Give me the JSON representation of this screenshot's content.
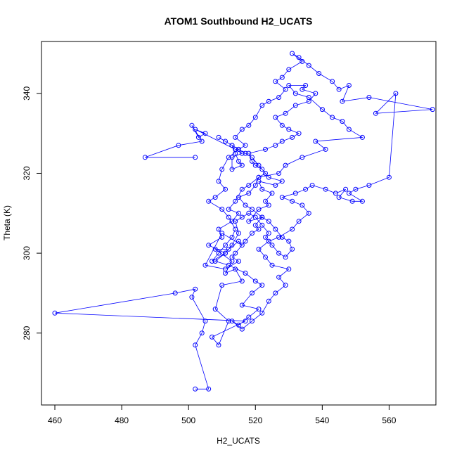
{
  "chart_data": {
    "type": "scatter",
    "title": "ATOM1 Southbound H2_UCATS",
    "xlabel": "H2_UCATS",
    "ylabel": "Theta (K)",
    "xlim": [
      456,
      574
    ],
    "ylim": [
      262,
      353
    ],
    "xticks": [
      460,
      480,
      500,
      520,
      540,
      560
    ],
    "yticks": [
      280,
      300,
      320,
      340
    ],
    "grid": false,
    "legend": "none",
    "connect_points": true,
    "colors": {
      "series": "#0000ff",
      "axis": "#000000"
    },
    "series": [
      {
        "x": [
          502,
          506,
          502,
          504,
          505,
          501,
          502,
          496,
          460,
          517,
          507,
          509,
          512,
          508,
          510,
          516,
          514,
          511,
          513,
          508,
          512,
          515,
          516,
          510,
          505,
          511,
          515,
          513,
          514,
          517,
          519,
          521,
          520,
          522,
          518,
          521,
          524,
          523,
          525,
          522,
          521,
          526,
          528,
          524,
          522,
          520,
          519,
          518,
          523,
          526,
          528,
          531,
          533,
          530,
          528,
          526,
          529,
          532,
          536,
          538,
          534,
          535,
          530,
          532,
          536,
          540,
          543,
          546,
          548,
          552,
          538,
          541,
          534,
          529,
          527,
          521,
          518,
          516,
          514,
          512,
          515,
          513,
          509,
          510,
          506,
          511,
          508,
          512,
          517,
          520,
          522,
          519,
          516,
          521,
          518,
          515,
          513,
          516,
          519,
          522,
          524,
          526,
          529,
          527,
          530,
          525,
          523,
          521,
          524,
          527,
          531,
          533,
          536,
          534,
          531,
          528,
          532,
          535,
          537,
          541,
          544,
          547,
          545,
          549,
          552,
          548,
          550,
          554,
          560,
          562,
          556,
          573,
          554,
          546,
          548,
          545,
          543,
          539,
          536,
          533,
          531,
          534,
          530,
          528,
          526,
          529,
          527,
          524,
          522,
          520,
          518,
          516,
          514,
          517,
          515,
          512,
          510,
          509,
          511,
          508,
          506,
          510,
          512,
          514,
          513,
          511,
          509,
          507,
          511,
          513,
          515,
          514,
          516,
          518,
          520,
          522,
          524,
          523,
          525,
          527,
          529,
          531,
          530,
          528,
          526,
          524,
          522,
          519,
          517,
          515,
          518,
          520,
          521,
          523,
          521,
          519,
          517,
          515,
          513,
          511,
          509,
          513,
          514,
          515,
          516,
          513,
          513,
          516,
          514,
          502,
          505,
          503,
          501,
          504,
          497,
          487,
          502
        ],
        "y": [
          266,
          266,
          277,
          280,
          283,
          289,
          291,
          290,
          285,
          283,
          279,
          277,
          283,
          286,
          292,
          293,
          296,
          295,
          298,
          301,
          301,
          303,
          302,
          305,
          297,
          296,
          298,
          299,
          300,
          303,
          305,
          306,
          307,
          309,
          308,
          311,
          312,
          313,
          315,
          316,
          318,
          317,
          318,
          319,
          321,
          322,
          323,
          325,
          326,
          327,
          328,
          329,
          330,
          331,
          332,
          334,
          335,
          337,
          338,
          340,
          341,
          342,
          342,
          340,
          339,
          336,
          334,
          333,
          331,
          329,
          328,
          326,
          324,
          322,
          320,
          319,
          317,
          316,
          313,
          311,
          310,
          308,
          306,
          304,
          302,
          300,
          298,
          297,
          295,
          293,
          292,
          290,
          287,
          286,
          284,
          282,
          283,
          281,
          283,
          285,
          288,
          290,
          292,
          294,
          296,
          297,
          299,
          301,
          303,
          304,
          306,
          308,
          310,
          312,
          313,
          314,
          315,
          316,
          317,
          316,
          315,
          316,
          314,
          313,
          313,
          315,
          316,
          317,
          319,
          340,
          335,
          336,
          339,
          338,
          342,
          341,
          343,
          345,
          347,
          349,
          350,
          348,
          346,
          344,
          343,
          341,
          339,
          338,
          337,
          334,
          332,
          331,
          329,
          327,
          326,
          324,
          321,
          318,
          316,
          314,
          313,
          311,
          309,
          306,
          304,
          302,
          300,
          298,
          300,
          302,
          305,
          308,
          309,
          310,
          309,
          307,
          305,
          304,
          302,
          300,
          299,
          301,
          303,
          304,
          306,
          308,
          309,
          311,
          312,
          314,
          315,
          317,
          319,
          320,
          322,
          324,
          325,
          326,
          327,
          328,
          329,
          327,
          325,
          323,
          322,
          321,
          324,
          325,
          326,
          331,
          330,
          329,
          332,
          328,
          327,
          324,
          324
        ]
      }
    ]
  }
}
